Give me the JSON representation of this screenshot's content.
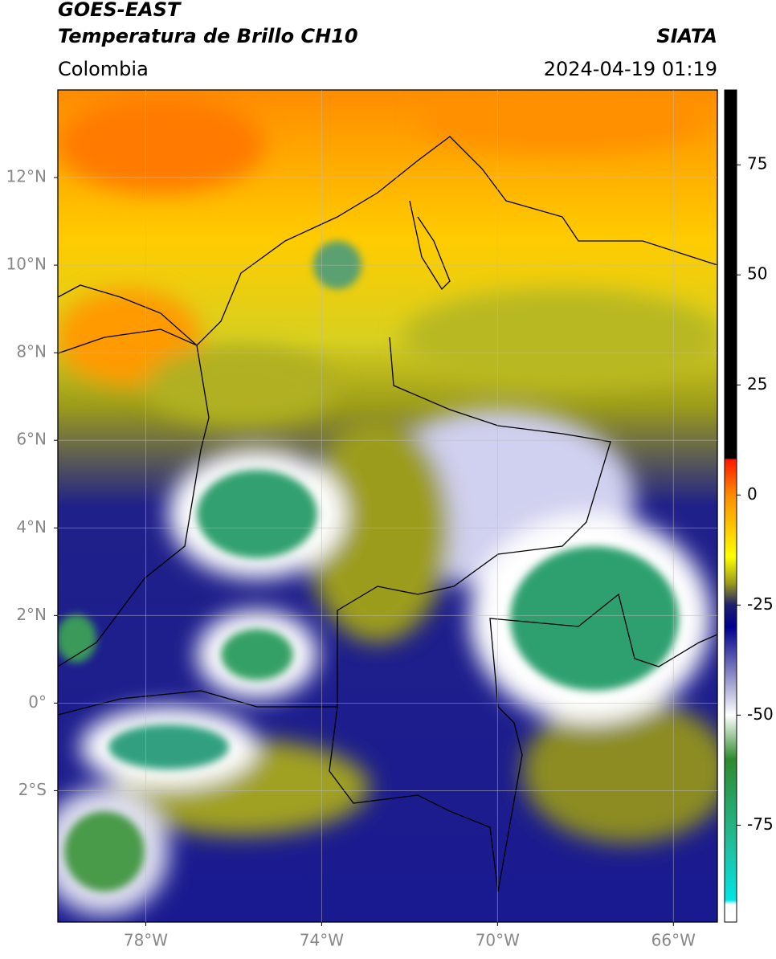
{
  "header": {
    "satellite": "GOES-EAST",
    "product": "Temperatura de Brillo CH10",
    "source": "SIATA",
    "region": "Colombia",
    "datetime": "2024-04-19 01:19"
  },
  "map": {
    "xlim": [
      -80,
      -65
    ],
    "ylim": [
      -5,
      14
    ],
    "xticks": [
      {
        "value": -78,
        "label": "78°W"
      },
      {
        "value": -74,
        "label": "74°W"
      },
      {
        "value": -70,
        "label": "70°W"
      },
      {
        "value": -66,
        "label": "66°W"
      }
    ],
    "yticks": [
      {
        "value": 12,
        "label": "12°N"
      },
      {
        "value": 10,
        "label": "10°N"
      },
      {
        "value": 8,
        "label": "8°N"
      },
      {
        "value": 6,
        "label": "6°N"
      },
      {
        "value": 4,
        "label": "4°N"
      },
      {
        "value": 2,
        "label": "2°N"
      },
      {
        "value": 0,
        "label": "0°"
      },
      {
        "value": -2,
        "label": "2°S"
      }
    ],
    "grid": true
  },
  "colorbar": {
    "lim": [
      -97,
      92
    ],
    "ticks": [
      75,
      50,
      25,
      0,
      -25,
      -50,
      -75
    ],
    "stops": [
      {
        "value": 92,
        "color": "#000000"
      },
      {
        "value": 8.4,
        "color": "#000000"
      },
      {
        "value": 8,
        "color": "#ff1a00"
      },
      {
        "value": 0,
        "color": "#ff8c00"
      },
      {
        "value": -14,
        "color": "#ffff00"
      },
      {
        "value": -20,
        "color": "#9c9c1a"
      },
      {
        "value": -25,
        "color": "#1f1f6e"
      },
      {
        "value": -30,
        "color": "#00008f"
      },
      {
        "value": -40,
        "color": "#7f7fc0"
      },
      {
        "value": -50,
        "color": "#ffffff"
      },
      {
        "value": -60,
        "color": "#2e8b2e"
      },
      {
        "value": -80,
        "color": "#20c0a0"
      },
      {
        "value": -92,
        "color": "#00e5e5"
      },
      {
        "value": -93,
        "color": "#ffffff"
      },
      {
        "value": -97,
        "color": "#ffffff"
      }
    ]
  }
}
